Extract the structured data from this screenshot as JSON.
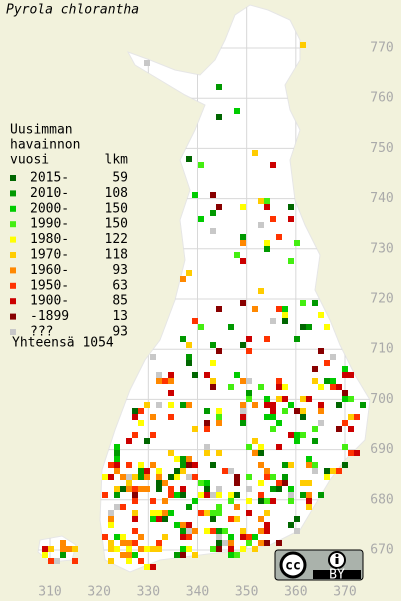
{
  "title": "Pyrola chlorantha",
  "legend": {
    "heading": [
      "Uusimman",
      "havainnon",
      "vuosi"
    ],
    "count_heading": "lkm",
    "rows": [
      {
        "label": "2015-",
        "count": 59,
        "color": "#006600"
      },
      {
        "label": "2010-",
        "count": 108,
        "color": "#009900"
      },
      {
        "label": "2000-",
        "count": 150,
        "color": "#00cc00"
      },
      {
        "label": "1990-",
        "count": 150,
        "color": "#44ee11"
      },
      {
        "label": "1980-",
        "count": 122,
        "color": "#ffff00"
      },
      {
        "label": "1970-",
        "count": 118,
        "color": "#ffcc00"
      },
      {
        "label": "1960-",
        "count": 93,
        "color": "#ff8800"
      },
      {
        "label": "1950-",
        "count": 63,
        "color": "#ff3300"
      },
      {
        "label": "1900-",
        "count": 85,
        "color": "#cc0000"
      },
      {
        "label": "-1899",
        "count": 13,
        "color": "#880000"
      },
      {
        "label": "???",
        "count": 93,
        "color": "#c8c8c8"
      }
    ],
    "total": "Yhteensä 1054"
  },
  "xticks": [
    310,
    320,
    330,
    340,
    350,
    360,
    370
  ],
  "yticks": [
    670,
    680,
    690,
    700,
    710,
    720,
    730,
    740,
    750,
    760,
    770
  ],
  "license": {
    "icon": "cc",
    "label": "BY"
  }
}
